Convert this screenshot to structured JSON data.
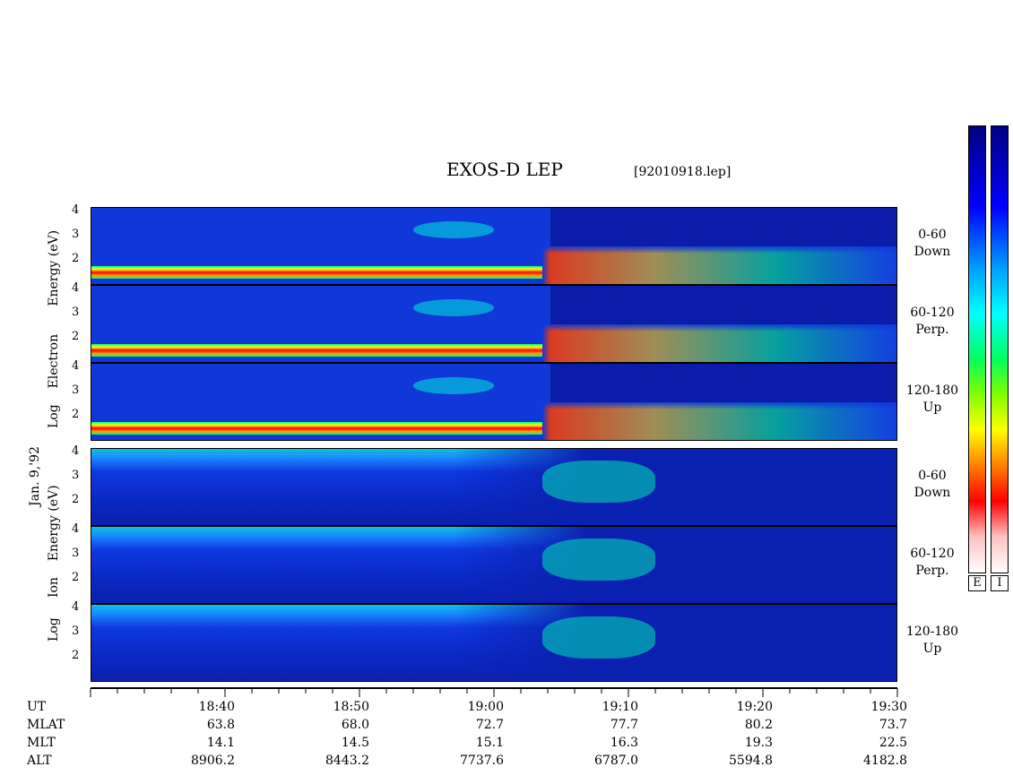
{
  "title": "EXOS-D LEP",
  "file_label": "[92010918.lep]",
  "date_label": "Jan. 9,'92",
  "electron_ylabel": [
    "Log",
    "Electron",
    "Energy",
    "(eV)"
  ],
  "ion_ylabel": [
    "Log",
    "Ion",
    "Energy",
    "(eV)"
  ],
  "colors": {
    "background": "#0a1aa8",
    "accent_low": "#1840ff",
    "accent_mid": "#00e0c0",
    "accent_high": "#ff2000"
  },
  "colorbars": {
    "electron_label": "E",
    "ion_label": "I"
  },
  "panels": [
    {
      "id": "e-down",
      "species": "electron",
      "angle": "0-60",
      "direction": "Down"
    },
    {
      "id": "e-perp",
      "species": "electron",
      "angle": "60-120",
      "direction": "Perp."
    },
    {
      "id": "e-up",
      "species": "electron",
      "angle": "120-180",
      "direction": "Up"
    },
    {
      "id": "i-down",
      "species": "ion",
      "angle": "0-60",
      "direction": "Down"
    },
    {
      "id": "i-perp",
      "species": "ion",
      "angle": "60-120",
      "direction": "Perp."
    },
    {
      "id": "i-up",
      "species": "ion",
      "angle": "120-180",
      "direction": "Up"
    }
  ],
  "y_ticks": [
    "4",
    "3",
    "2"
  ],
  "footer": {
    "row_labels": [
      "UT",
      "MLAT",
      "MLT",
      "ALT"
    ],
    "columns": [
      {
        "UT": "18:40",
        "MLAT": "63.8",
        "MLT": "14.1",
        "ALT": "8906.2"
      },
      {
        "UT": "18:50",
        "MLAT": "68.0",
        "MLT": "14.5",
        "ALT": "8443.2"
      },
      {
        "UT": "19:00",
        "MLAT": "72.7",
        "MLT": "15.1",
        "ALT": "7737.6"
      },
      {
        "UT": "19:10",
        "MLAT": "77.7",
        "MLT": "16.3",
        "ALT": "6787.0"
      },
      {
        "UT": "19:20",
        "MLAT": "80.2",
        "MLT": "19.3",
        "ALT": "5594.8"
      },
      {
        "UT": "19:30",
        "MLAT": "73.7",
        "MLT": "22.5",
        "ALT": "4182.8"
      }
    ]
  },
  "chart_data": {
    "type": "heatmap",
    "title": "EXOS-D LEP",
    "x": [
      "18:40",
      "18:50",
      "19:00",
      "19:10",
      "19:20",
      "19:30"
    ],
    "y_axis": {
      "label": "Log Energy (eV)",
      "ticks": [
        2,
        3,
        4
      ],
      "ylim": [
        1,
        4
      ]
    },
    "colorscale": "rainbow (blue low, red/white high)",
    "series": [
      {
        "name": "0-60 Down",
        "species": "Electron"
      },
      {
        "name": "60-120 Perp.",
        "species": "Electron"
      },
      {
        "name": "120-180 Up",
        "species": "Electron"
      },
      {
        "name": "0-60 Down",
        "species": "Ion"
      },
      {
        "name": "60-120 Perp.",
        "species": "Ion"
      },
      {
        "name": "120-180 Up",
        "species": "Ion"
      }
    ],
    "grid": false
  }
}
